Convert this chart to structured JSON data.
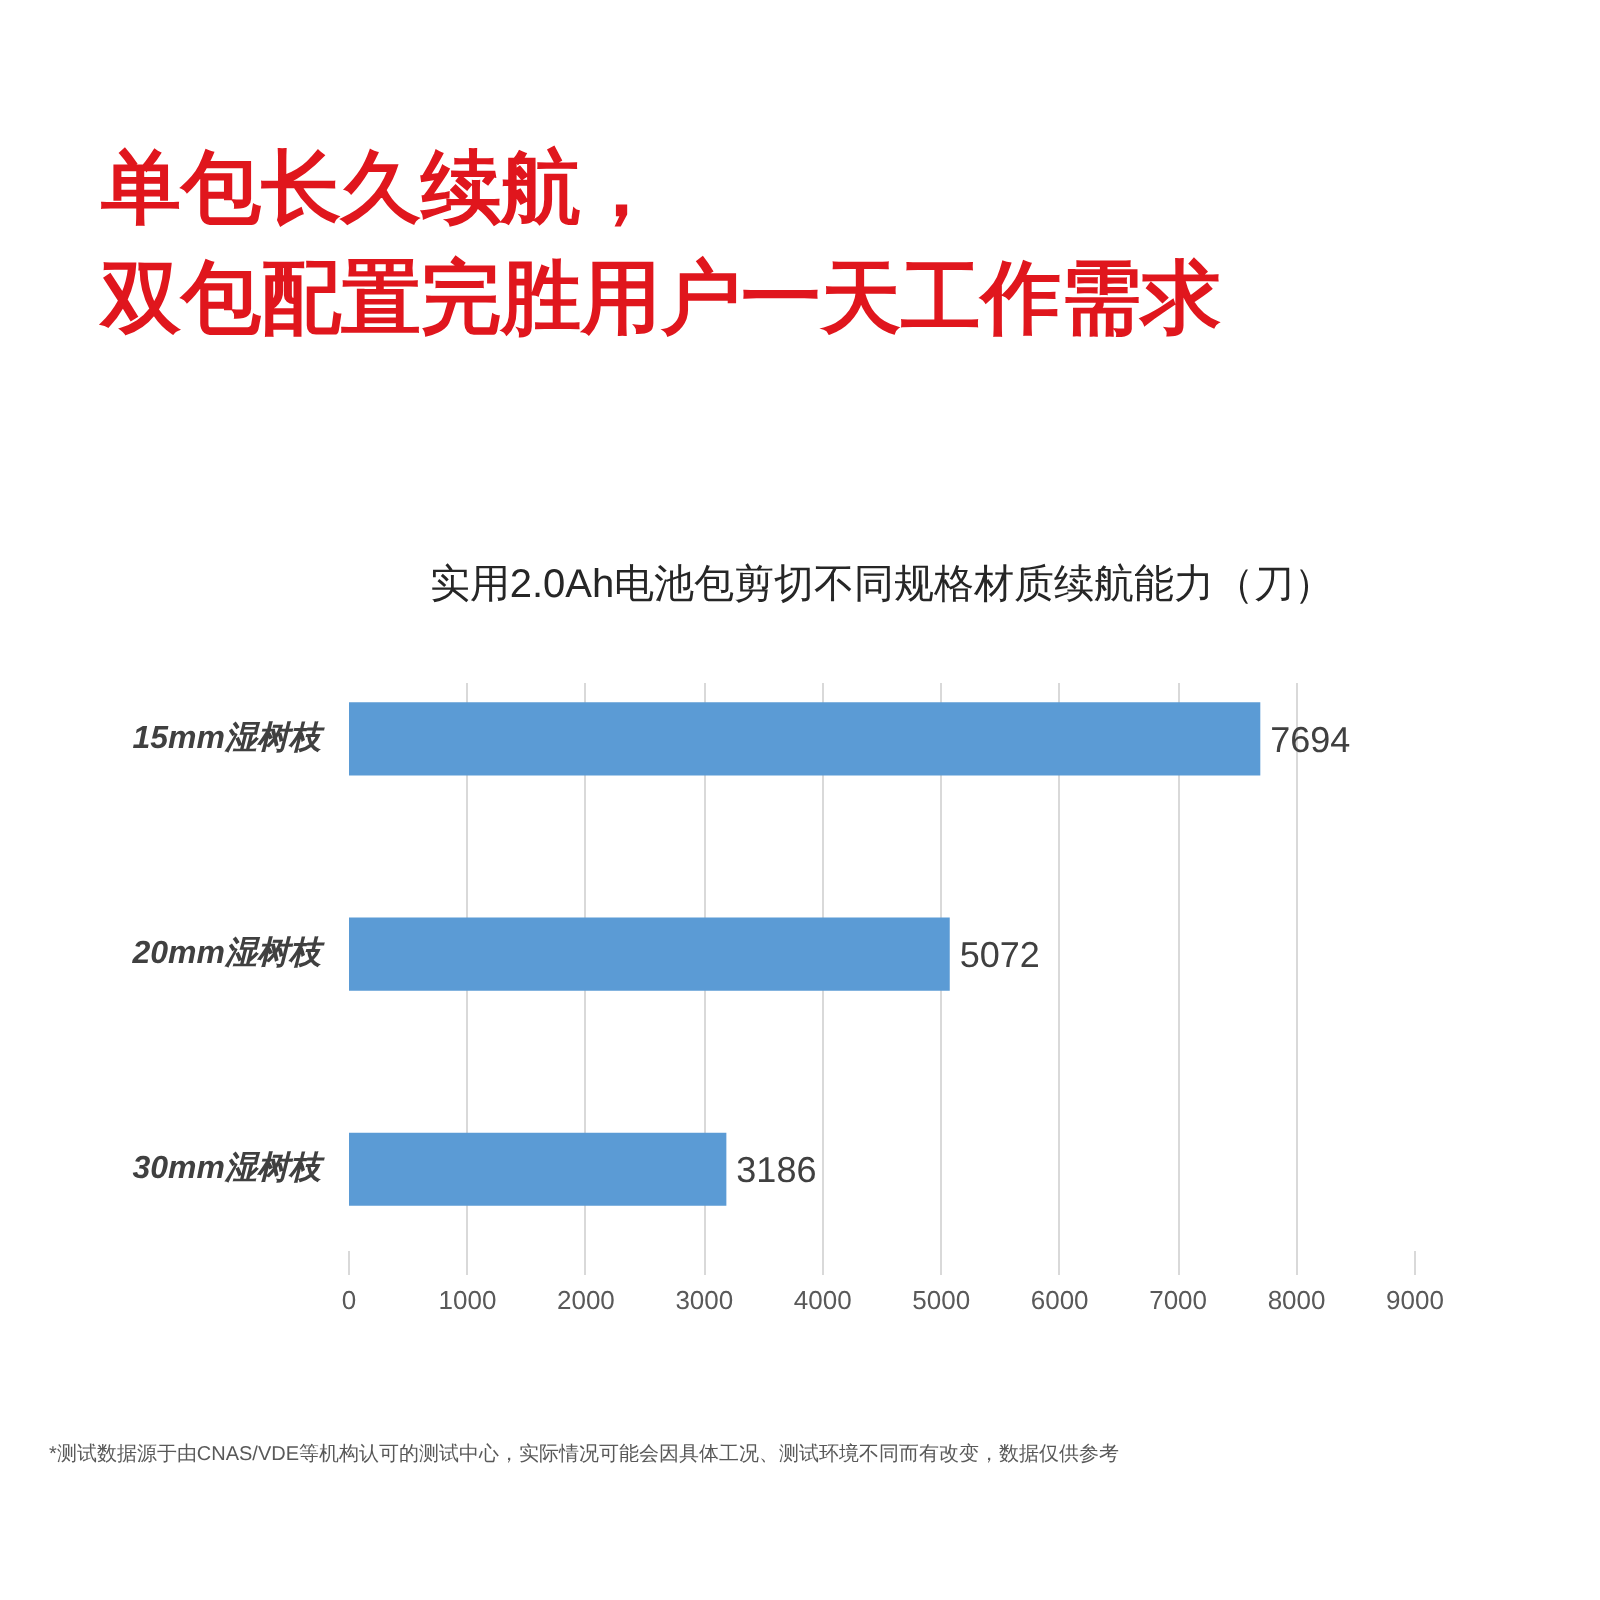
{
  "chart_data": {
    "type": "bar",
    "orientation": "horizontal",
    "title": "单包长久续航，双包配置完胜用户一天工作需求",
    "subtitle": "实用2.0Ah电池包剪切不同规格材质续航能力（刀）",
    "categories": [
      "15mm湿树枝",
      "20mm湿树枝",
      "30mm湿树枝"
    ],
    "values": [
      7694,
      5072,
      3186
    ],
    "color": "#5b9bd5",
    "xlim": [
      0,
      9000
    ],
    "xticks": [
      0,
      1000,
      2000,
      3000,
      4000,
      5000,
      6000,
      7000,
      8000,
      9000
    ],
    "grid": "x",
    "data_labels": true,
    "annotations": [
      "*测试数据源于由CNAS/VDE等机构认可的测试中心，实际情况可能会因具体工况、测试环境不同而有改变，数据仅供参考"
    ]
  }
}
